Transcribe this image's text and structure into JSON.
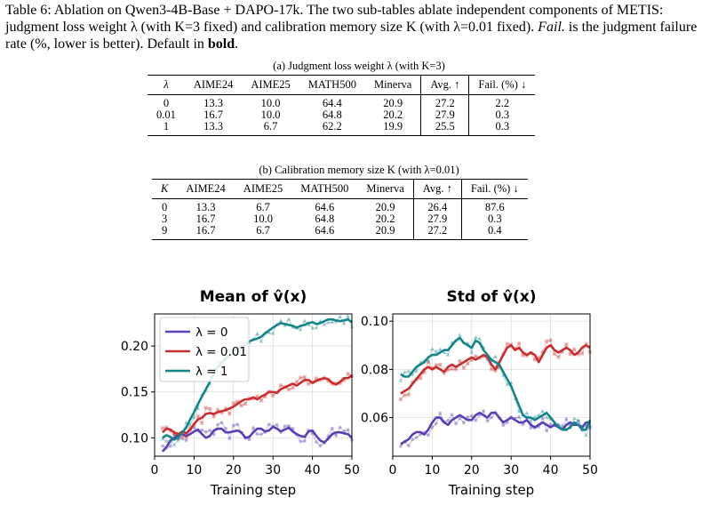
{
  "caption": {
    "lead": "Table 6: Ablation on Qwen3-4B-Base + DAPO-17k. The two sub-tables ablate independent components of METIS: judgment loss weight λ (with K=3 fixed) and calibration memory size K (with λ=0.01 fixed).",
    "fail_word": "Fail.",
    "fail_rest": "is the judgment failure rate (%, lower is better). Default in",
    "bold_word": "bold",
    "end": "."
  },
  "table_a": {
    "caption": "(a) Judgment loss weight λ (with K=3)",
    "headers": [
      "λ",
      "AIME24",
      "AIME25",
      "MATH500",
      "Minerva",
      "Avg. ↑",
      "Fail. (%) ↓"
    ],
    "rows": [
      [
        "0",
        "13.3",
        "10.0",
        "64.4",
        "20.9",
        "27.2",
        "2.2"
      ],
      [
        "0.01",
        "16.7",
        "10.0",
        "64.8",
        "20.2",
        "27.9",
        "0.3"
      ],
      [
        "1",
        "13.3",
        "6.7",
        "62.2",
        "19.9",
        "25.5",
        "0.3"
      ]
    ]
  },
  "table_b": {
    "caption": "(b) Calibration memory size K (with λ=0.01)",
    "headers": [
      "K",
      "AIME24",
      "AIME25",
      "MATH500",
      "Minerva",
      "Avg. ↑",
      "Fail. (%) ↓"
    ],
    "rows": [
      [
        "0",
        "13.3",
        "6.7",
        "64.6",
        "20.9",
        "26.4",
        "87.6"
      ],
      [
        "3",
        "16.7",
        "10.0",
        "64.8",
        "20.2",
        "27.9",
        "0.3"
      ],
      [
        "9",
        "16.7",
        "6.7",
        "64.6",
        "20.9",
        "27.2",
        "0.4"
      ]
    ]
  },
  "chart_data": [
    {
      "type": "line",
      "title": "Mean of v̂(x)",
      "xlabel": "Training step",
      "ylabel": "",
      "xlim": [
        0,
        50
      ],
      "ylim": [
        0.08,
        0.235
      ],
      "xticks": [
        0,
        10,
        20,
        30,
        40,
        50
      ],
      "yticks": [
        0.1,
        0.15,
        0.2
      ],
      "ytick_labels": [
        "0.10",
        "0.15",
        "0.20"
      ],
      "grid": true,
      "legend": "top-left",
      "colors": [
        "#5b3fb5",
        "#c92d2d",
        "#13858a"
      ],
      "x": [
        2,
        3,
        4,
        5,
        6,
        7,
        8,
        9,
        10,
        11,
        12,
        13,
        14,
        15,
        16,
        17,
        18,
        19,
        20,
        21,
        22,
        23,
        24,
        25,
        26,
        27,
        28,
        29,
        30,
        31,
        32,
        33,
        34,
        35,
        36,
        37,
        38,
        39,
        40,
        41,
        42,
        43,
        44,
        45,
        46,
        47,
        48,
        49,
        50
      ],
      "series": [
        {
          "name": "λ = 0",
          "values": [
            0.085,
            0.09,
            0.097,
            0.1,
            0.104,
            0.104,
            0.102,
            0.104,
            0.107,
            0.109,
            0.104,
            0.1,
            0.102,
            0.108,
            0.11,
            0.11,
            0.106,
            0.106,
            0.107,
            0.108,
            0.106,
            0.1,
            0.101,
            0.106,
            0.11,
            0.11,
            0.107,
            0.108,
            0.112,
            0.11,
            0.107,
            0.109,
            0.111,
            0.107,
            0.104,
            0.102,
            0.101,
            0.107,
            0.108,
            0.102,
            0.097,
            0.095,
            0.099,
            0.104,
            0.106,
            0.106,
            0.105,
            0.104,
            0.1
          ]
        },
        {
          "name": "λ = 0.01",
          "values": [
            0.106,
            0.11,
            0.109,
            0.106,
            0.104,
            0.107,
            0.105,
            0.109,
            0.115,
            0.12,
            0.122,
            0.126,
            0.127,
            0.126,
            0.128,
            0.129,
            0.13,
            0.132,
            0.134,
            0.137,
            0.14,
            0.142,
            0.142,
            0.144,
            0.142,
            0.145,
            0.147,
            0.15,
            0.15,
            0.149,
            0.153,
            0.155,
            0.157,
            0.159,
            0.157,
            0.16,
            0.163,
            0.163,
            0.16,
            0.162,
            0.164,
            0.165,
            0.164,
            0.16,
            0.158,
            0.161,
            0.165,
            0.165,
            0.168
          ]
        },
        {
          "name": "λ = 1",
          "values": [
            0.1,
            0.103,
            0.101,
            0.098,
            0.101,
            0.106,
            0.111,
            0.12,
            0.128,
            0.137,
            0.145,
            0.153,
            0.161,
            0.17,
            0.177,
            0.182,
            0.186,
            0.19,
            0.194,
            0.197,
            0.199,
            0.202,
            0.205,
            0.207,
            0.208,
            0.21,
            0.214,
            0.217,
            0.22,
            0.223,
            0.225,
            0.224,
            0.223,
            0.222,
            0.22,
            0.222,
            0.223,
            0.225,
            0.226,
            0.224,
            0.225,
            0.227,
            0.229,
            0.229,
            0.228,
            0.227,
            0.228,
            0.229,
            0.226
          ]
        }
      ]
    },
    {
      "type": "line",
      "title": "Std of v̂(x)",
      "xlabel": "Training step",
      "ylabel": "",
      "xlim": [
        0,
        50
      ],
      "ylim": [
        0.044,
        0.103
      ],
      "xticks": [
        0,
        10,
        20,
        30,
        40,
        50
      ],
      "yticks": [
        0.06,
        0.08,
        0.1
      ],
      "ytick_labels": [
        "0.06",
        "0.08",
        "0.10"
      ],
      "grid": true,
      "legend": "",
      "colors": [
        "#5b3fb5",
        "#c92d2d",
        "#13858a"
      ],
      "x": [
        2,
        3,
        4,
        5,
        6,
        7,
        8,
        9,
        10,
        11,
        12,
        13,
        14,
        15,
        16,
        17,
        18,
        19,
        20,
        21,
        22,
        23,
        24,
        25,
        26,
        27,
        28,
        29,
        30,
        31,
        32,
        33,
        34,
        35,
        36,
        37,
        38,
        39,
        40,
        41,
        42,
        43,
        44,
        45,
        46,
        47,
        48,
        49,
        50
      ],
      "series": [
        {
          "name": "λ = 0",
          "values": [
            0.049,
            0.05,
            0.051,
            0.053,
            0.054,
            0.054,
            0.053,
            0.055,
            0.058,
            0.06,
            0.06,
            0.058,
            0.057,
            0.059,
            0.06,
            0.061,
            0.06,
            0.059,
            0.059,
            0.061,
            0.062,
            0.061,
            0.06,
            0.062,
            0.062,
            0.06,
            0.058,
            0.059,
            0.06,
            0.059,
            0.058,
            0.058,
            0.059,
            0.057,
            0.056,
            0.057,
            0.058,
            0.057,
            0.056,
            0.057,
            0.056,
            0.055,
            0.057,
            0.058,
            0.057,
            0.057,
            0.056,
            0.058,
            0.058
          ]
        },
        {
          "name": "λ = 0.01",
          "values": [
            0.07,
            0.071,
            0.072,
            0.074,
            0.076,
            0.078,
            0.08,
            0.081,
            0.08,
            0.081,
            0.08,
            0.079,
            0.081,
            0.082,
            0.081,
            0.082,
            0.083,
            0.084,
            0.085,
            0.084,
            0.085,
            0.086,
            0.085,
            0.082,
            0.08,
            0.083,
            0.086,
            0.089,
            0.09,
            0.088,
            0.089,
            0.087,
            0.086,
            0.087,
            0.086,
            0.083,
            0.086,
            0.089,
            0.09,
            0.088,
            0.087,
            0.088,
            0.089,
            0.088,
            0.086,
            0.087,
            0.089,
            0.09,
            0.089
          ]
        },
        {
          "name": "λ = 1",
          "values": [
            0.078,
            0.077,
            0.077,
            0.079,
            0.081,
            0.082,
            0.083,
            0.085,
            0.086,
            0.086,
            0.087,
            0.088,
            0.088,
            0.09,
            0.092,
            0.093,
            0.091,
            0.09,
            0.089,
            0.092,
            0.091,
            0.088,
            0.086,
            0.084,
            0.083,
            0.082,
            0.079,
            0.076,
            0.073,
            0.069,
            0.065,
            0.061,
            0.06,
            0.06,
            0.059,
            0.06,
            0.061,
            0.062,
            0.06,
            0.058,
            0.056,
            0.055,
            0.055,
            0.056,
            0.058,
            0.057,
            0.055,
            0.055,
            0.059
          ]
        }
      ]
    }
  ]
}
